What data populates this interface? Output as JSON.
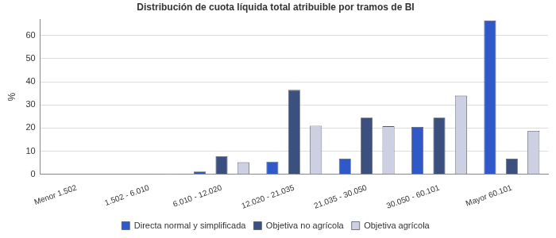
{
  "chart_data": {
    "type": "bar",
    "title": "Distribución de cuota líquida total atribuible por tramos de BI",
    "y_label": "%",
    "categories": [
      "Menor 1.502",
      "1.502 - 6.010",
      "6.010 - 12.020",
      "12.020 - 21.035",
      "21.035 - 30.050",
      "30.050 - 60.101",
      "Mayor 60.101"
    ],
    "series": [
      {
        "name": "Directa normal y simplificada",
        "color": "#2f58c8",
        "values": [
          0,
          0,
          1.2,
          5.5,
          6.8,
          20.5,
          66.5
        ]
      },
      {
        "name": "Objetiva no agrícola",
        "color": "#3c5080",
        "values": [
          0,
          0.1,
          7.8,
          36.5,
          24.5,
          24.5,
          6.8
        ]
      },
      {
        "name": "Objetiva agrícola",
        "color": "#cdd0e3",
        "values": [
          0,
          0.3,
          5.2,
          21,
          20.8,
          34,
          18.8
        ]
      }
    ],
    "ylim": [
      0,
      67
    ],
    "yticks": [
      0,
      10,
      20,
      30,
      40,
      50,
      60
    ],
    "grid": true,
    "legend": "bottom"
  }
}
